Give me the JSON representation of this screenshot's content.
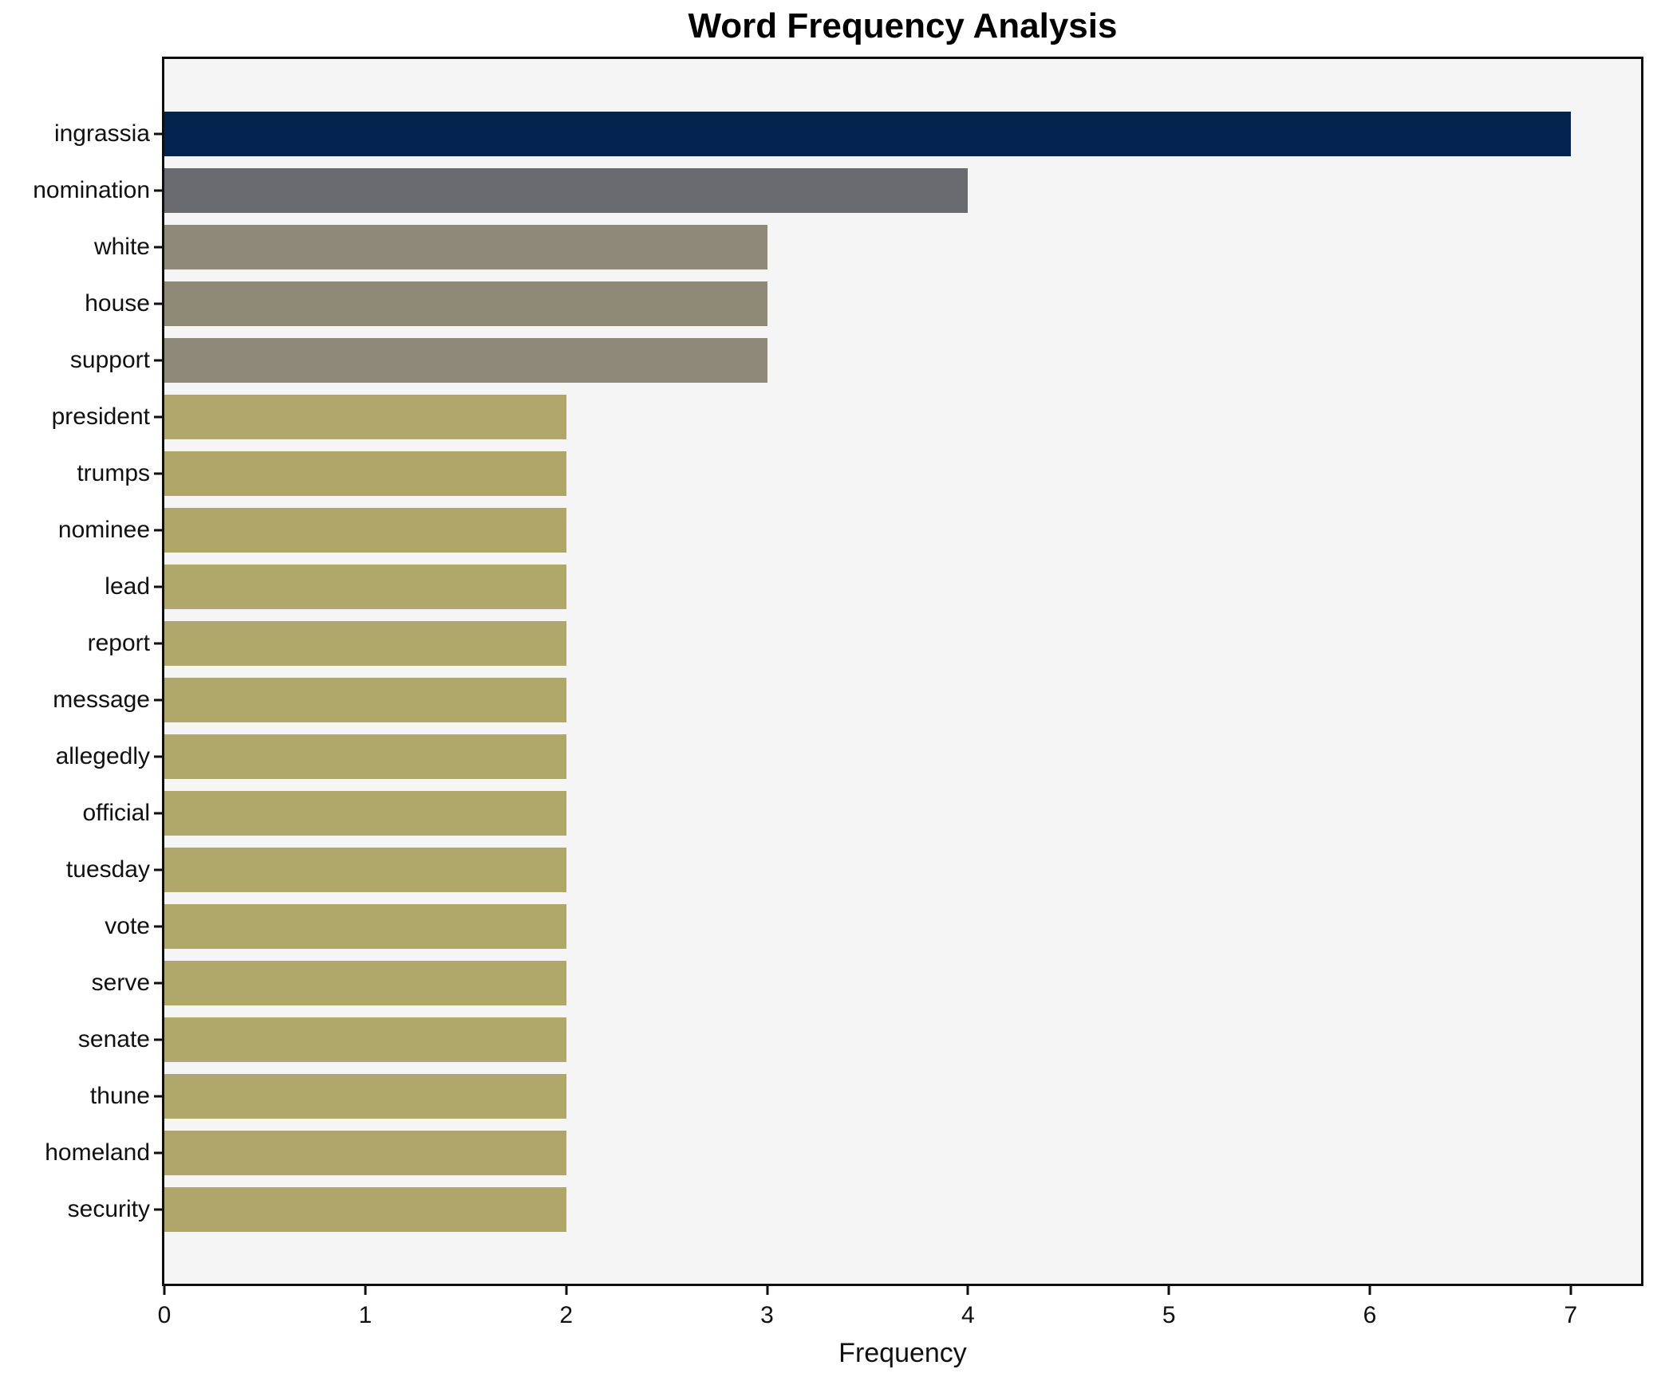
{
  "chart_data": {
    "type": "bar",
    "orientation": "horizontal",
    "title": "Word Frequency Analysis",
    "xlabel": "Frequency",
    "ylabel": "",
    "xlim": [
      0,
      7.35
    ],
    "xticks": [
      0,
      1,
      2,
      3,
      4,
      5,
      6,
      7
    ],
    "grid": false,
    "legend": false,
    "plot_background": "#f5f5f6",
    "spine_color": "#0f0f0f",
    "categories": [
      "ingrassia",
      "nomination",
      "white",
      "house",
      "support",
      "president",
      "trumps",
      "nominee",
      "lead",
      "report",
      "message",
      "allegedly",
      "official",
      "tuesday",
      "vote",
      "serve",
      "senate",
      "thune",
      "homeland",
      "security"
    ],
    "values": [
      7,
      4,
      3,
      3,
      3,
      2,
      2,
      2,
      2,
      2,
      2,
      2,
      2,
      2,
      2,
      2,
      2,
      2,
      2,
      2
    ],
    "bar_colors": [
      "#04234e",
      "#6a6b71",
      "#8f8979",
      "#8e8a76",
      "#8e8978",
      "#b1a76c",
      "#b0a669",
      "#b0a66a",
      "#b0a76a",
      "#b0a76a",
      "#b0a76a",
      "#b0a76a",
      "#b0a76a",
      "#b0a76a",
      "#b0a76a",
      "#b0a76a",
      "#b0a76a",
      "#b0a76a",
      "#b0a66b",
      "#b0a66b"
    ]
  }
}
